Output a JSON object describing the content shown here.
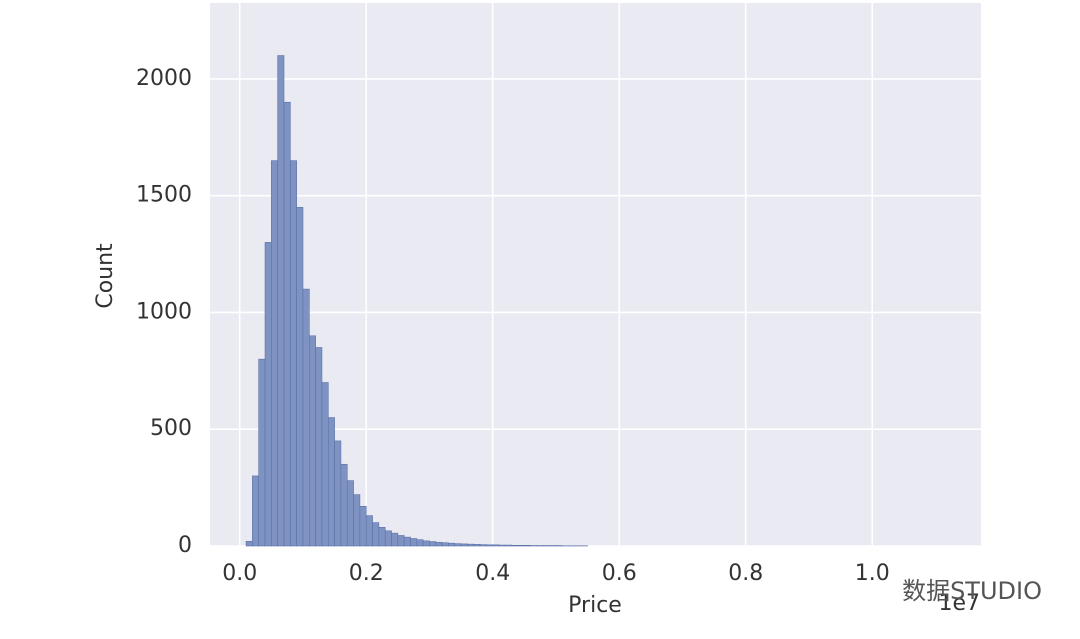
{
  "chart_data": {
    "type": "histogram",
    "xlabel": "Price",
    "ylabel": "Count",
    "offset_text": "1e7",
    "watermark": "数据STUDIO",
    "bins": [
      0.01,
      0.02,
      0.03,
      0.04,
      0.05,
      0.06,
      0.07,
      0.08,
      0.09,
      0.1,
      0.11,
      0.12,
      0.13,
      0.14,
      0.15,
      0.16,
      0.17,
      0.18,
      0.19,
      0.2,
      0.21,
      0.22,
      0.23,
      0.24,
      0.25,
      0.26,
      0.27,
      0.28,
      0.29,
      0.3,
      0.31,
      0.32,
      0.33,
      0.34,
      0.35,
      0.36,
      0.37,
      0.38,
      0.39,
      0.4,
      0.41,
      0.42,
      0.43,
      0.44,
      0.45,
      0.46,
      0.47,
      0.48,
      0.49,
      0.5,
      0.51,
      0.52,
      0.53,
      0.54,
      0.55
    ],
    "values": [
      20,
      300,
      800,
      1300,
      1650,
      2100,
      1900,
      1650,
      1450,
      1100,
      900,
      850,
      700,
      550,
      450,
      350,
      280,
      220,
      170,
      130,
      100,
      80,
      65,
      55,
      45,
      38,
      32,
      27,
      22,
      19,
      16,
      14,
      12,
      10,
      9,
      8,
      7,
      6,
      5,
      5,
      4,
      4,
      3,
      3,
      3,
      2,
      2,
      2,
      2,
      2,
      1,
      1,
      1,
      1
    ],
    "color": "#7f93c3",
    "edgecolor": "#5a72a8",
    "xlim": [
      -0.047,
      1.172
    ],
    "ylim": [
      0,
      2325
    ],
    "xticks": [
      {
        "value": 0,
        "label": "0.0"
      },
      0.2,
      0.4,
      0.6,
      0.8,
      {
        "value": 1,
        "label": "1.0"
      }
    ],
    "yticks": [
      0,
      500,
      1000,
      1500,
      2000
    ],
    "grid": true,
    "background": "#eaeaf2"
  }
}
